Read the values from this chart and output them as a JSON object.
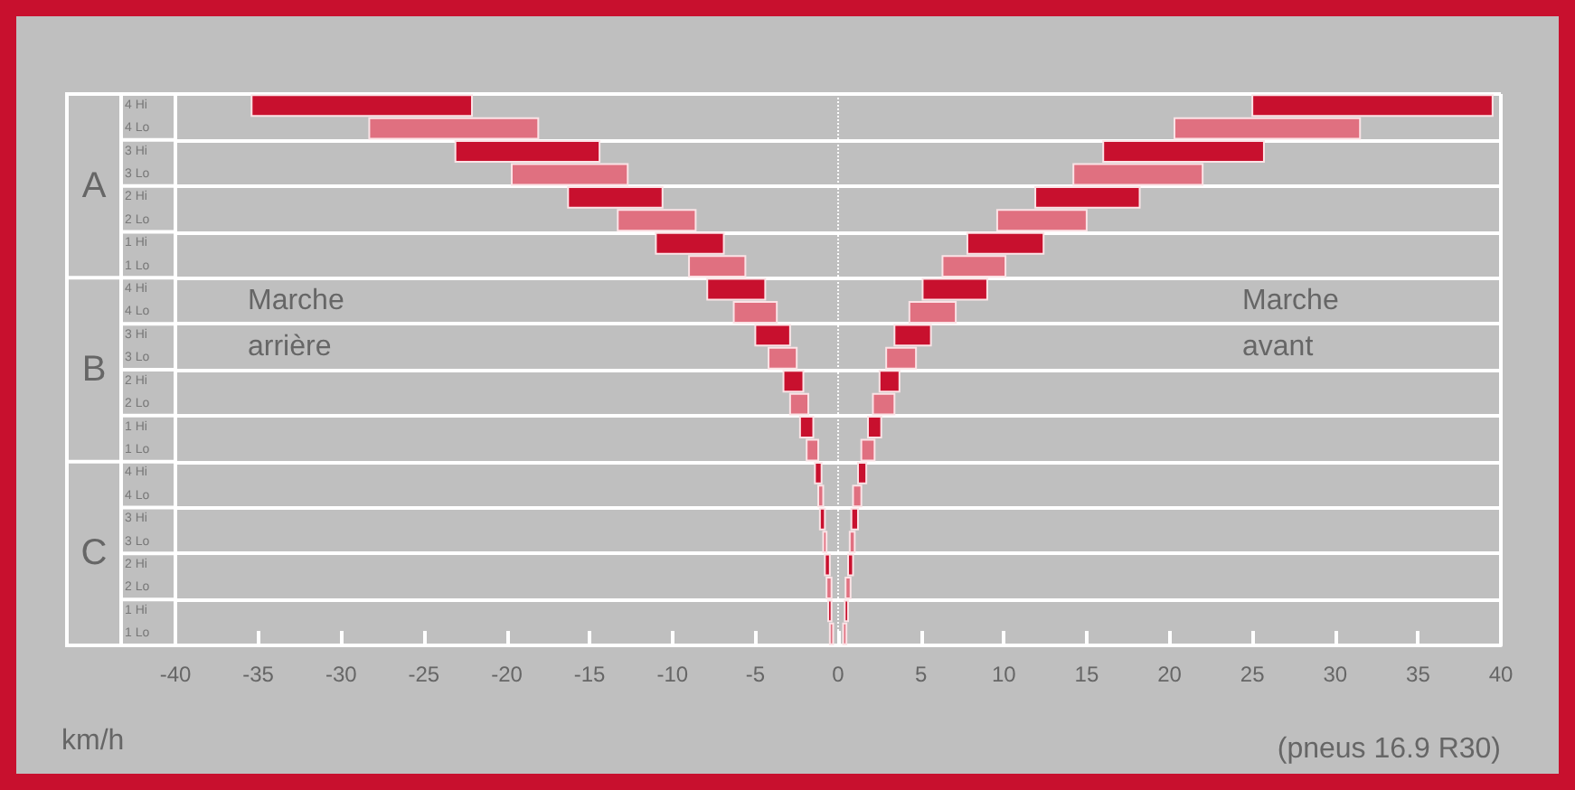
{
  "chart_data": {
    "type": "bar",
    "orientation": "horizontal",
    "xlabel": "km/h",
    "categories": [
      "4 Hi",
      "4 Lo",
      "3 Hi",
      "3 Lo",
      "2 Hi",
      "2 Lo",
      "1 Hi",
      "1 Lo",
      "4 Hi",
      "4 Lo",
      "3 Hi",
      "3 Lo",
      "2 Hi",
      "2 Lo",
      "1 Hi",
      "1 Lo",
      "4 Hi",
      "4 Lo",
      "3 Hi",
      "3 Lo",
      "2 Hi",
      "2 Lo",
      "1 Hi",
      "1 Lo"
    ],
    "series": [
      {
        "colors": [
          "#c8102e",
          "#e07080",
          "#c8102e",
          "#e07080",
          "#c8102e",
          "#e07080",
          "#c8102e",
          "#e07080",
          "#c8102e",
          "#e07080",
          "#c8102e",
          "#e07080",
          "#c8102e",
          "#e07080",
          "#c8102e",
          "#e07080",
          "#c8102e",
          "#e07080",
          "#c8102e",
          "#e07080",
          "#c8102e",
          "#e07080",
          "#c8102e",
          "#e07080"
        ],
        "base": [
          -35.4,
          -28.3,
          -23.1,
          -19.7,
          -16.3,
          -13.3,
          -11.0,
          -9.0,
          -7.9,
          -6.3,
          -5.0,
          -4.2,
          -3.3,
          -2.9,
          -2.3,
          -1.9,
          -1.4,
          -1.2,
          -1.1,
          -0.9,
          -0.8,
          -0.7,
          -0.6,
          -0.5
        ],
        "values": [
          13.3,
          10.2,
          8.7,
          7.0,
          5.7,
          4.7,
          4.1,
          3.4,
          3.5,
          2.6,
          2.1,
          1.7,
          1.2,
          1.1,
          0.8,
          0.7,
          0.4,
          0.3,
          0.3,
          0.2,
          0.3,
          0.3,
          0.2,
          0.2
        ]
      },
      {
        "colors": [
          "#c8102e",
          "#e07080",
          "#c8102e",
          "#e07080",
          "#c8102e",
          "#e07080",
          "#c8102e",
          "#e07080",
          "#c8102e",
          "#e07080",
          "#c8102e",
          "#e07080",
          "#c8102e",
          "#e07080",
          "#c8102e",
          "#e07080",
          "#c8102e",
          "#e07080",
          "#c8102e",
          "#e07080",
          "#c8102e",
          "#e07080",
          "#c8102e",
          "#e07080"
        ],
        "base": [
          25.0,
          20.3,
          16.0,
          14.2,
          11.9,
          9.6,
          7.8,
          6.3,
          5.1,
          4.3,
          3.4,
          2.9,
          2.5,
          2.1,
          1.8,
          1.4,
          1.2,
          0.9,
          0.8,
          0.7,
          0.6,
          0.45,
          0.4,
          0.3
        ],
        "values": [
          14.5,
          11.2,
          9.7,
          7.8,
          6.3,
          5.4,
          4.6,
          3.8,
          3.9,
          2.8,
          2.2,
          1.8,
          1.2,
          1.3,
          0.8,
          0.8,
          0.5,
          0.5,
          0.4,
          0.3,
          0.3,
          0.3,
          0.2,
          0.2
        ]
      }
    ],
    "xlim": [
      -40,
      40
    ],
    "xticks": [
      -40,
      -35,
      -30,
      -25,
      -20,
      -15,
      -10,
      -5,
      0,
      5,
      10,
      15,
      20,
      25,
      30,
      35,
      40
    ],
    "grid": "y",
    "ref_lines": [
      {
        "axis": "x",
        "value": 0,
        "color": "#ffffff",
        "line_style": "dotted"
      }
    ],
    "annotations": [
      "A",
      "B",
      "C",
      "Marche\narrière",
      "Marche\navant",
      "(pneus 16.9 R30)"
    ]
  }
}
